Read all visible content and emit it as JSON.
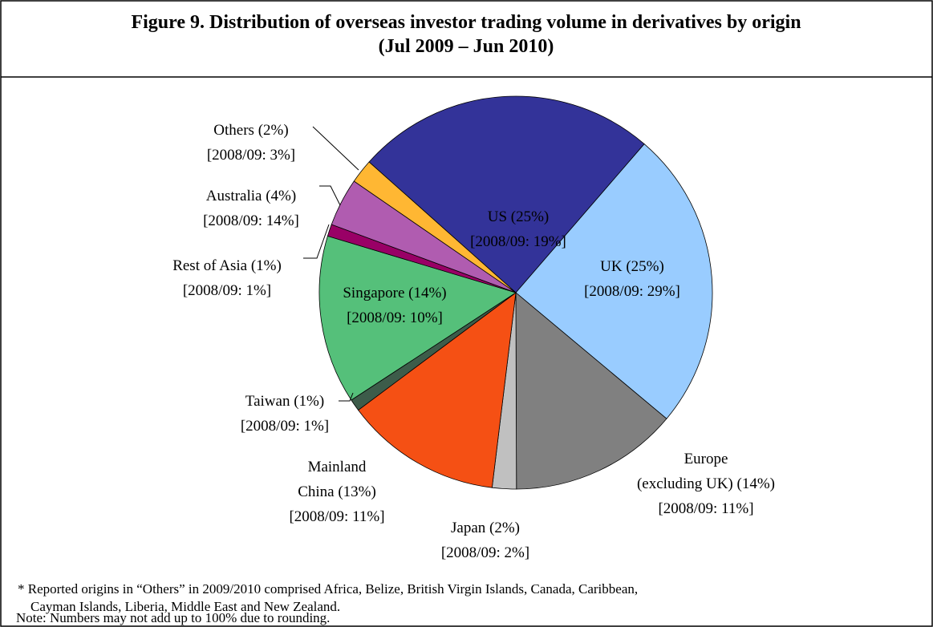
{
  "chart_data": {
    "type": "pie",
    "title": [
      "Figure 9.    Distribution of overseas investor trading volume in derivatives by origin",
      "(Jul 2009 – Jun 2010)"
    ],
    "values": [
      25,
      25,
      14,
      2,
      13,
      1,
      14,
      1,
      4,
      2
    ],
    "value_labels": [
      [
        "US (25%)",
        "[2008/09: 19%]"
      ],
      [
        "UK (25%)",
        "[2008/09: 29%]"
      ],
      [
        "Europe",
        "(excluding UK) (14%)",
        "[2008/09: 11%]"
      ],
      [
        "Japan (2%)",
        "[2008/09: 2%]"
      ],
      [
        "Mainland",
        "China (13%)",
        "[2008/09: 11%]"
      ],
      [
        "Taiwan (1%)",
        "[2008/09: 1%]"
      ],
      [
        "Singapore (14%)",
        "[2008/09: 10%]"
      ],
      [
        "Rest of Asia (1%)",
        "[2008/09: 1%]"
      ],
      [
        "Australia (4%)",
        "[2008/09: 14%]"
      ],
      [
        "Others (2%)",
        "[2008/09: 3%]"
      ]
    ],
    "colors": [
      "#333399",
      "#99ccff",
      "#808080",
      "#c0c0c0",
      "#f55014",
      "#3d5c4a",
      "#55c07a",
      "#990066",
      "#b05cb0",
      "#ffb733"
    ],
    "notes": [
      "* Reported origins in “Others” in 2009/2010 comprised Africa, Belize, British Virgin Islands, Canada, Caribbean,",
      "Cayman Islands, Liberia, Middle East and New Zealand.",
      "Note: Numbers may not add up to 100% due to rounding."
    ]
  }
}
